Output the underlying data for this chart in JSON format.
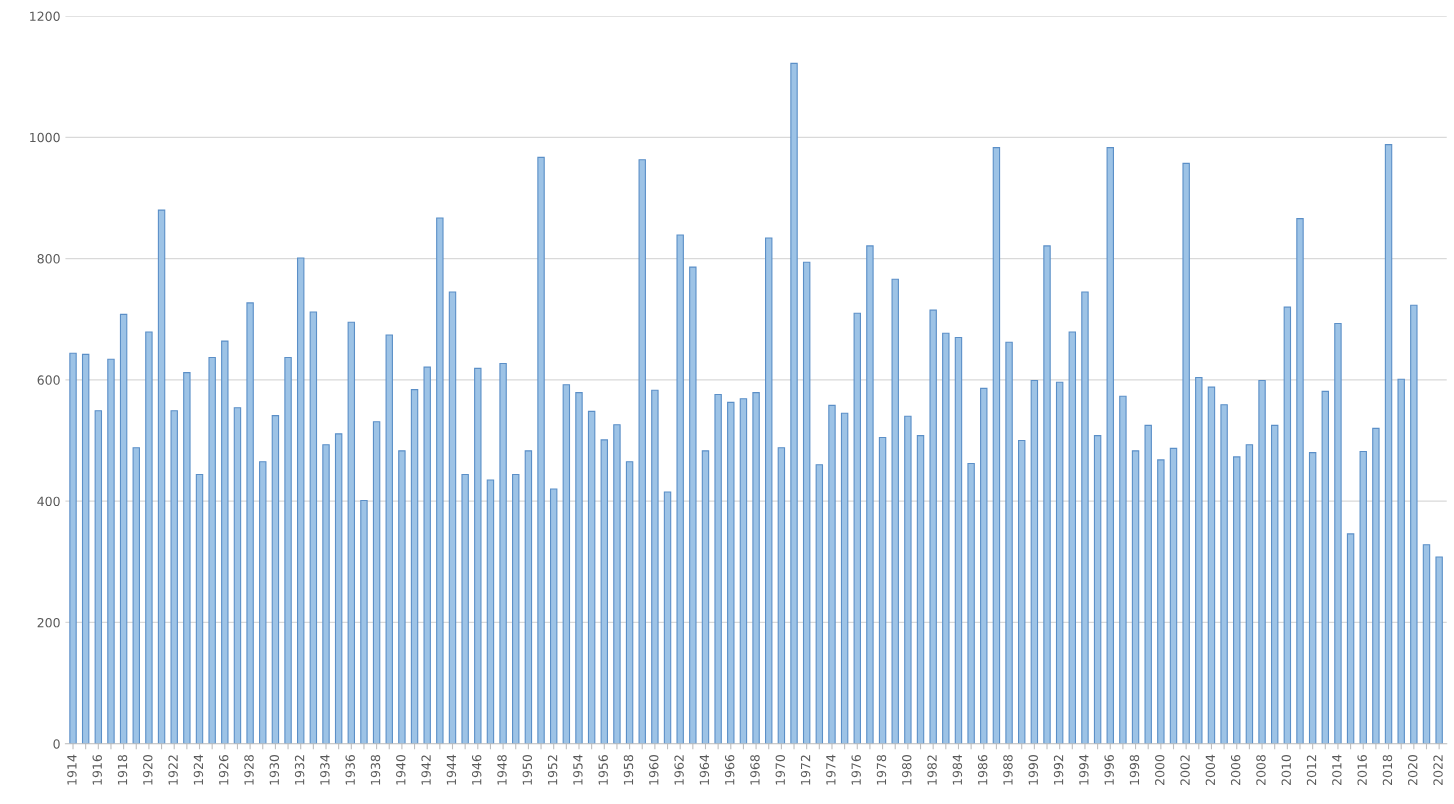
{
  "chart_data": {
    "type": "bar",
    "categories": [
      "1914",
      null,
      "1916",
      null,
      "1918",
      null,
      "1920",
      null,
      "1922",
      null,
      "1924",
      null,
      "1926",
      null,
      "1928",
      null,
      "1930",
      null,
      "1932",
      null,
      "1934",
      null,
      "1936",
      null,
      "1938",
      null,
      "1940",
      null,
      "1942",
      null,
      "1944",
      null,
      "1946",
      null,
      "1948",
      null,
      "1950",
      null,
      "1952",
      null,
      "1954",
      null,
      "1956",
      null,
      "1958",
      null,
      "1960",
      null,
      "1962",
      null,
      "1964",
      null,
      "1966",
      null,
      "1968",
      null,
      "1970",
      null,
      "1972",
      null,
      "1974",
      null,
      "1976",
      null,
      "1978",
      null,
      "1980",
      null,
      "1982",
      null,
      "1984",
      null,
      "1986",
      null,
      "1988",
      null,
      "1990",
      null,
      "1992",
      null,
      "1994",
      null,
      "1996",
      null,
      "1998",
      null,
      "2000",
      null,
      "2002",
      null,
      "2004",
      null,
      "2006",
      null,
      "2008",
      null,
      "2010",
      null,
      "2012",
      null,
      "2014",
      null,
      "2016",
      null,
      "2018",
      null,
      "2020",
      null,
      "2022"
    ],
    "values": [
      644,
      642,
      549,
      634,
      708,
      488,
      679,
      880,
      549,
      612,
      444,
      637,
      664,
      554,
      727,
      465,
      541,
      637,
      801,
      712,
      493,
      511,
      695,
      401,
      531,
      674,
      483,
      584,
      621,
      867,
      745,
      444,
      619,
      435,
      627,
      444,
      483,
      967,
      420,
      592,
      579,
      548,
      501,
      526,
      465,
      963,
      583,
      415,
      839,
      786,
      483,
      576,
      563,
      569,
      579,
      834,
      488,
      1122,
      794,
      460,
      558,
      545,
      710,
      821,
      505,
      766,
      540,
      508,
      715,
      677,
      670,
      462,
      586,
      983,
      662,
      500,
      599,
      821,
      596,
      679,
      745,
      508,
      983,
      573,
      483,
      525,
      468,
      487,
      957,
      604,
      588,
      559,
      473,
      493,
      599,
      525,
      720,
      866,
      480,
      581,
      693,
      346,
      482,
      520,
      988,
      601,
      723,
      328,
      308
    ],
    "color": "#9dc3e6",
    "ylim": [
      0,
      1200
    ],
    "yticks": [
      0,
      200,
      400,
      600,
      800,
      1000,
      1200
    ],
    "grid": "y",
    "legend": false
  }
}
